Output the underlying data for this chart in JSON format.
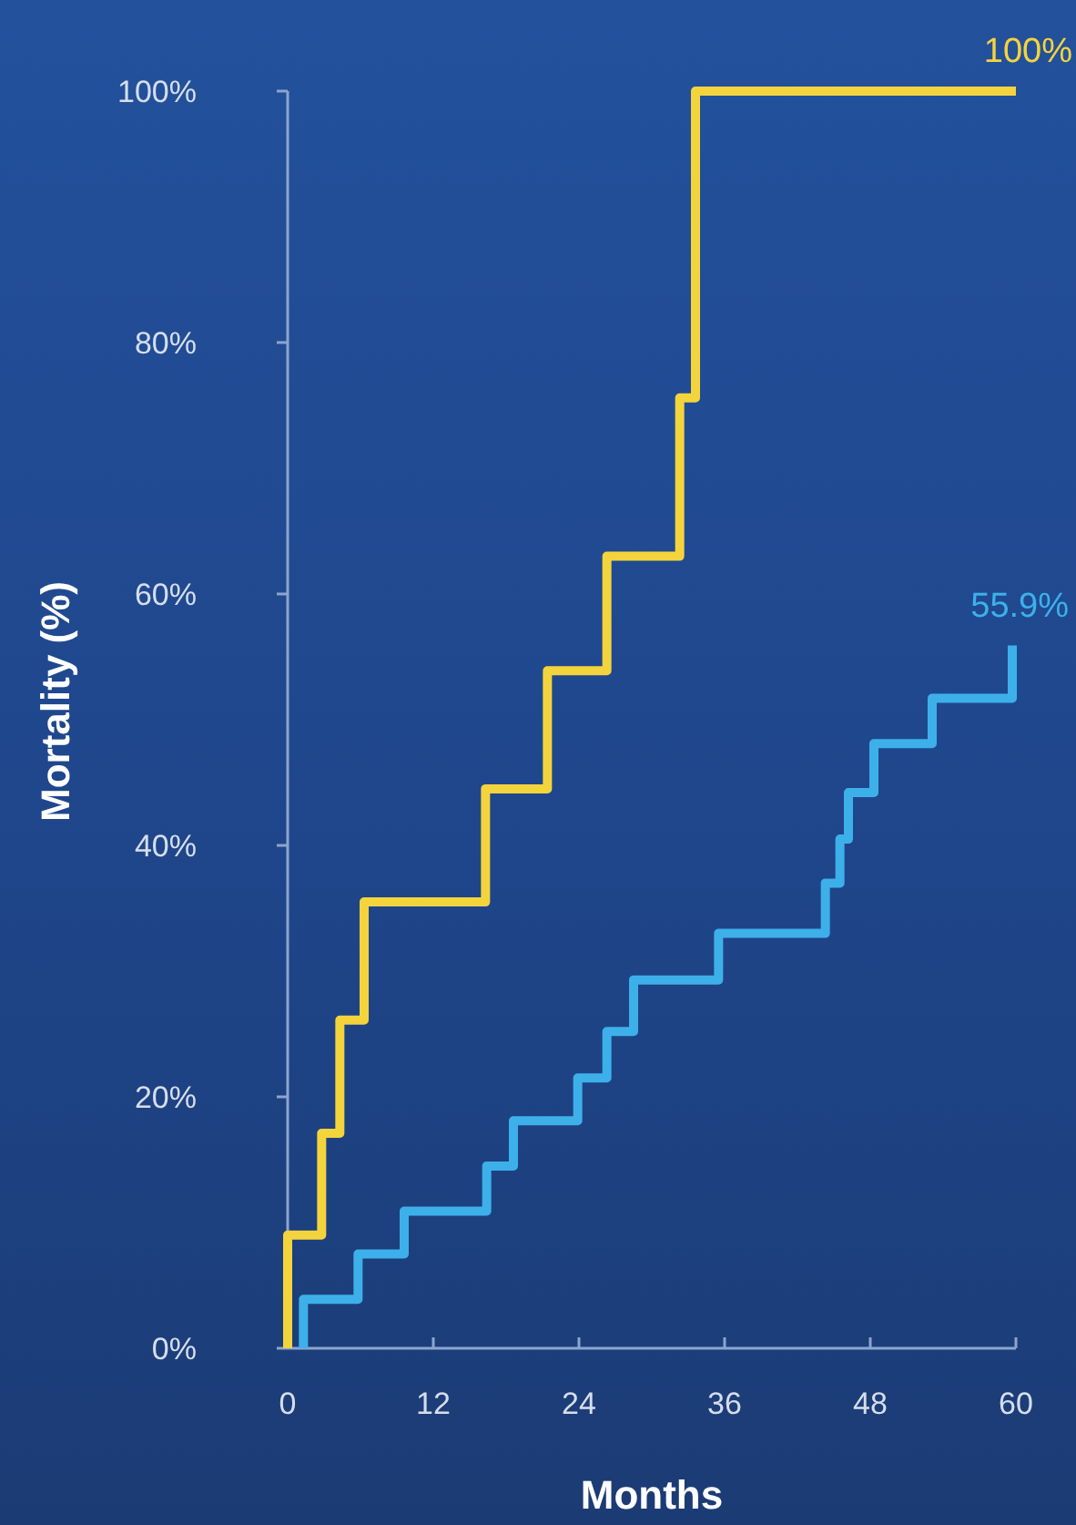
{
  "chart_data": {
    "type": "step",
    "xlabel": "Months",
    "ylabel": "Mortality (%)",
    "xlim": [
      0,
      60
    ],
    "xticks": [
      0,
      12,
      24,
      36,
      48,
      60
    ],
    "ylim": [
      0,
      100
    ],
    "yticks": [
      {
        "value": 0,
        "label": "0%"
      },
      {
        "value": 20,
        "label": "20%"
      },
      {
        "value": 40,
        "label": "40%"
      },
      {
        "value": 60,
        "label": "60%"
      },
      {
        "value": 80,
        "label": "80%"
      },
      {
        "value": 100,
        "label": "100%"
      }
    ],
    "line_style": "solid",
    "series": [
      {
        "color": "#f4d43c",
        "x": [
          0,
          0,
          2.8,
          4.3,
          6.3,
          16.3,
          21.4,
          26.3,
          32.3,
          33.6,
          60
        ],
        "values": [
          0,
          9.0,
          17.1,
          26.1,
          35.5,
          44.5,
          53.9,
          63.0,
          75.6,
          100,
          100
        ],
        "value_labels": [
          null,
          null,
          null,
          null,
          null,
          null,
          null,
          null,
          null,
          null,
          "100%"
        ]
      },
      {
        "color": "#3db0ea",
        "x": [
          1.3,
          1.3,
          5.8,
          9.6,
          16.4,
          18.6,
          23.9,
          26.3,
          28.5,
          35.5,
          44.3,
          45.5,
          46.2,
          48.3,
          53.1,
          59.7
        ],
        "values": [
          0,
          3.9,
          7.5,
          10.9,
          14.5,
          18.1,
          21.5,
          25.2,
          29.3,
          33.0,
          37.0,
          40.5,
          44.2,
          48.1,
          51.7,
          55.9
        ],
        "value_labels": [
          null,
          null,
          null,
          null,
          null,
          null,
          null,
          null,
          null,
          null,
          null,
          null,
          null,
          null,
          null,
          "55.9%"
        ]
      }
    ]
  }
}
